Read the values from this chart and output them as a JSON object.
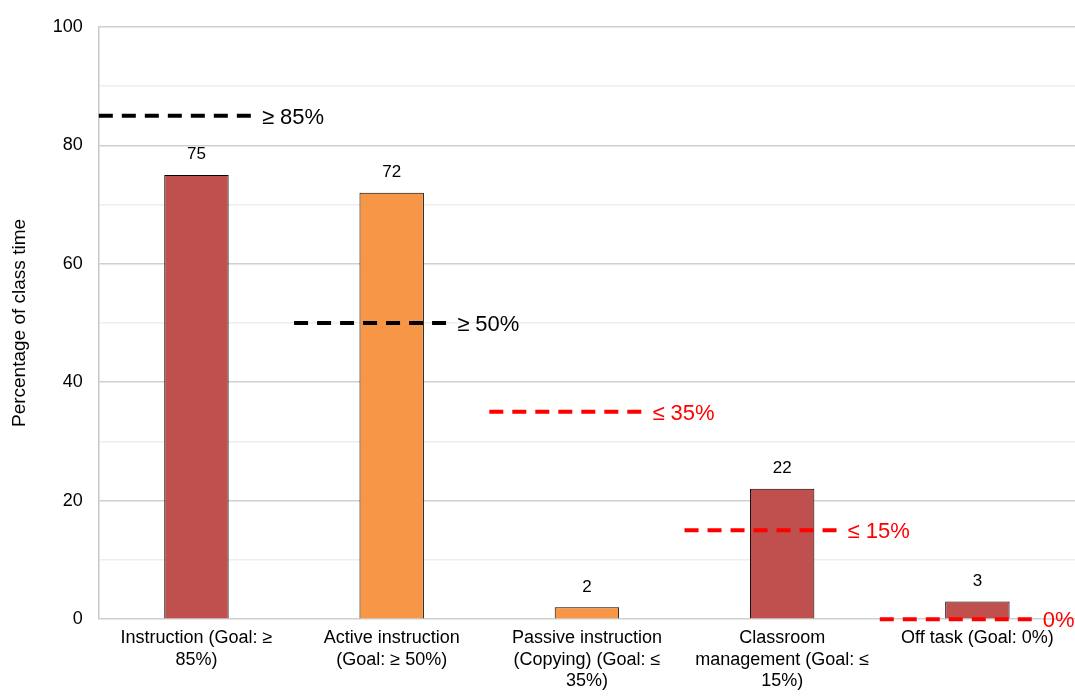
{
  "chart_data": {
    "type": "bar",
    "ylabel": "Percentage of class time",
    "categories": [
      "Instruction (Goal: ≥ 85%)",
      "Active instruction (Goal: ≥ 50%)",
      "Passive instruction (Copying) (Goal: ≤ 35%)",
      "Classroom management (Goal: ≤ 15%)",
      "Off task (Goal: 0%)"
    ],
    "values": [
      75,
      72,
      2,
      22,
      3
    ],
    "colors": [
      "#c0504d",
      "#f79646",
      "#f79646",
      "#c0504d",
      "#c0504d"
    ],
    "ylim": [
      0,
      100
    ],
    "yticks": [
      0,
      {
        "value": 10,
        "label": null
      },
      20,
      {
        "value": 30,
        "label": null
      },
      40,
      {
        "value": 50,
        "label": null
      },
      60,
      {
        "value": 70,
        "label": null
      },
      80,
      {
        "value": 90,
        "label": null
      },
      100
    ],
    "grid": "y",
    "data_labels": true,
    "legend": false,
    "ref_lines": [
      {
        "axis": "y",
        "value": 85,
        "label": "≥ 85%",
        "color": "#000000",
        "line_style": "dashed"
      },
      {
        "axis": "y",
        "value": 50,
        "label": "≥ 50%",
        "color": "#000000",
        "line_style": "dashed"
      },
      {
        "axis": "y",
        "value": 35,
        "label": "≤ 35%",
        "color": "#ff0000",
        "line_style": "dashed"
      },
      {
        "axis": "y",
        "value": 15,
        "label": "≤ 15%",
        "color": "#ff0000",
        "line_style": "dashed"
      },
      {
        "axis": "y",
        "value": 0,
        "label": "0%",
        "color": "#ff0000",
        "line_style": "dashed"
      }
    ]
  }
}
